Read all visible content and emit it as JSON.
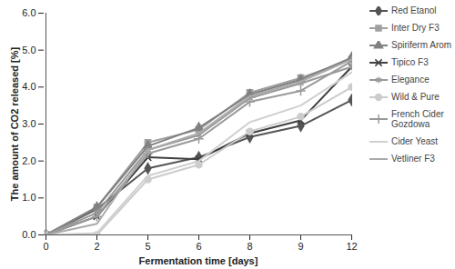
{
  "chart_data": {
    "type": "line",
    "x_label": "Fermentation time [days]",
    "y_label": "The amount of CO2 released [%]",
    "categories": [
      "0",
      "2",
      "5",
      "6",
      "8",
      "9",
      "12"
    ],
    "ylim": [
      0,
      6
    ],
    "yticks": [
      0,
      1,
      2,
      3,
      4,
      5,
      6
    ],
    "grid": false,
    "legend": "right",
    "series": [
      {
        "name": "Red Etanol",
        "color": "#555555",
        "marker": "diamond",
        "values": [
          0,
          0.7,
          1.8,
          2.1,
          2.65,
          2.95,
          3.65
        ]
      },
      {
        "name": "Inter Dry F3",
        "color": "#a0a0a0",
        "marker": "square",
        "values": [
          0,
          0.75,
          2.5,
          2.85,
          3.85,
          4.25,
          4.75
        ]
      },
      {
        "name": "Spiriferm Arom",
        "color": "#808080",
        "marker": "triangle",
        "values": [
          0,
          0.75,
          2.4,
          2.9,
          3.8,
          4.2,
          4.8
        ]
      },
      {
        "name": "Tipico F3",
        "color": "#404040",
        "marker": "times",
        "values": [
          0,
          0.5,
          2.1,
          2.05,
          2.75,
          3.1,
          4.55
        ]
      },
      {
        "name": "Elegance",
        "color": "#999999",
        "marker": "asterisk",
        "values": [
          0,
          0.6,
          2.3,
          2.7,
          3.7,
          4.1,
          4.55
        ]
      },
      {
        "name": "Wild & Pure",
        "color": "#cccccc",
        "marker": "circle",
        "values": [
          0,
          0,
          1.5,
          1.9,
          2.8,
          3.2,
          4.0
        ]
      },
      {
        "name": "French Cider Gozdowa",
        "color": "#9a9a9a",
        "marker": "plus",
        "values": [
          0,
          0.5,
          2.2,
          2.6,
          3.6,
          3.9,
          4.7
        ]
      },
      {
        "name": "Cider Yeast",
        "color": "#d0d0d0",
        "marker": "none",
        "values": [
          0,
          0.05,
          1.6,
          2.0,
          3.05,
          3.5,
          4.4
        ]
      },
      {
        "name": "Vetliner F3",
        "color": "#aaaaaa",
        "marker": "none",
        "values": [
          0,
          0.3,
          2.3,
          2.75,
          3.75,
          4.15,
          4.75
        ]
      }
    ]
  }
}
